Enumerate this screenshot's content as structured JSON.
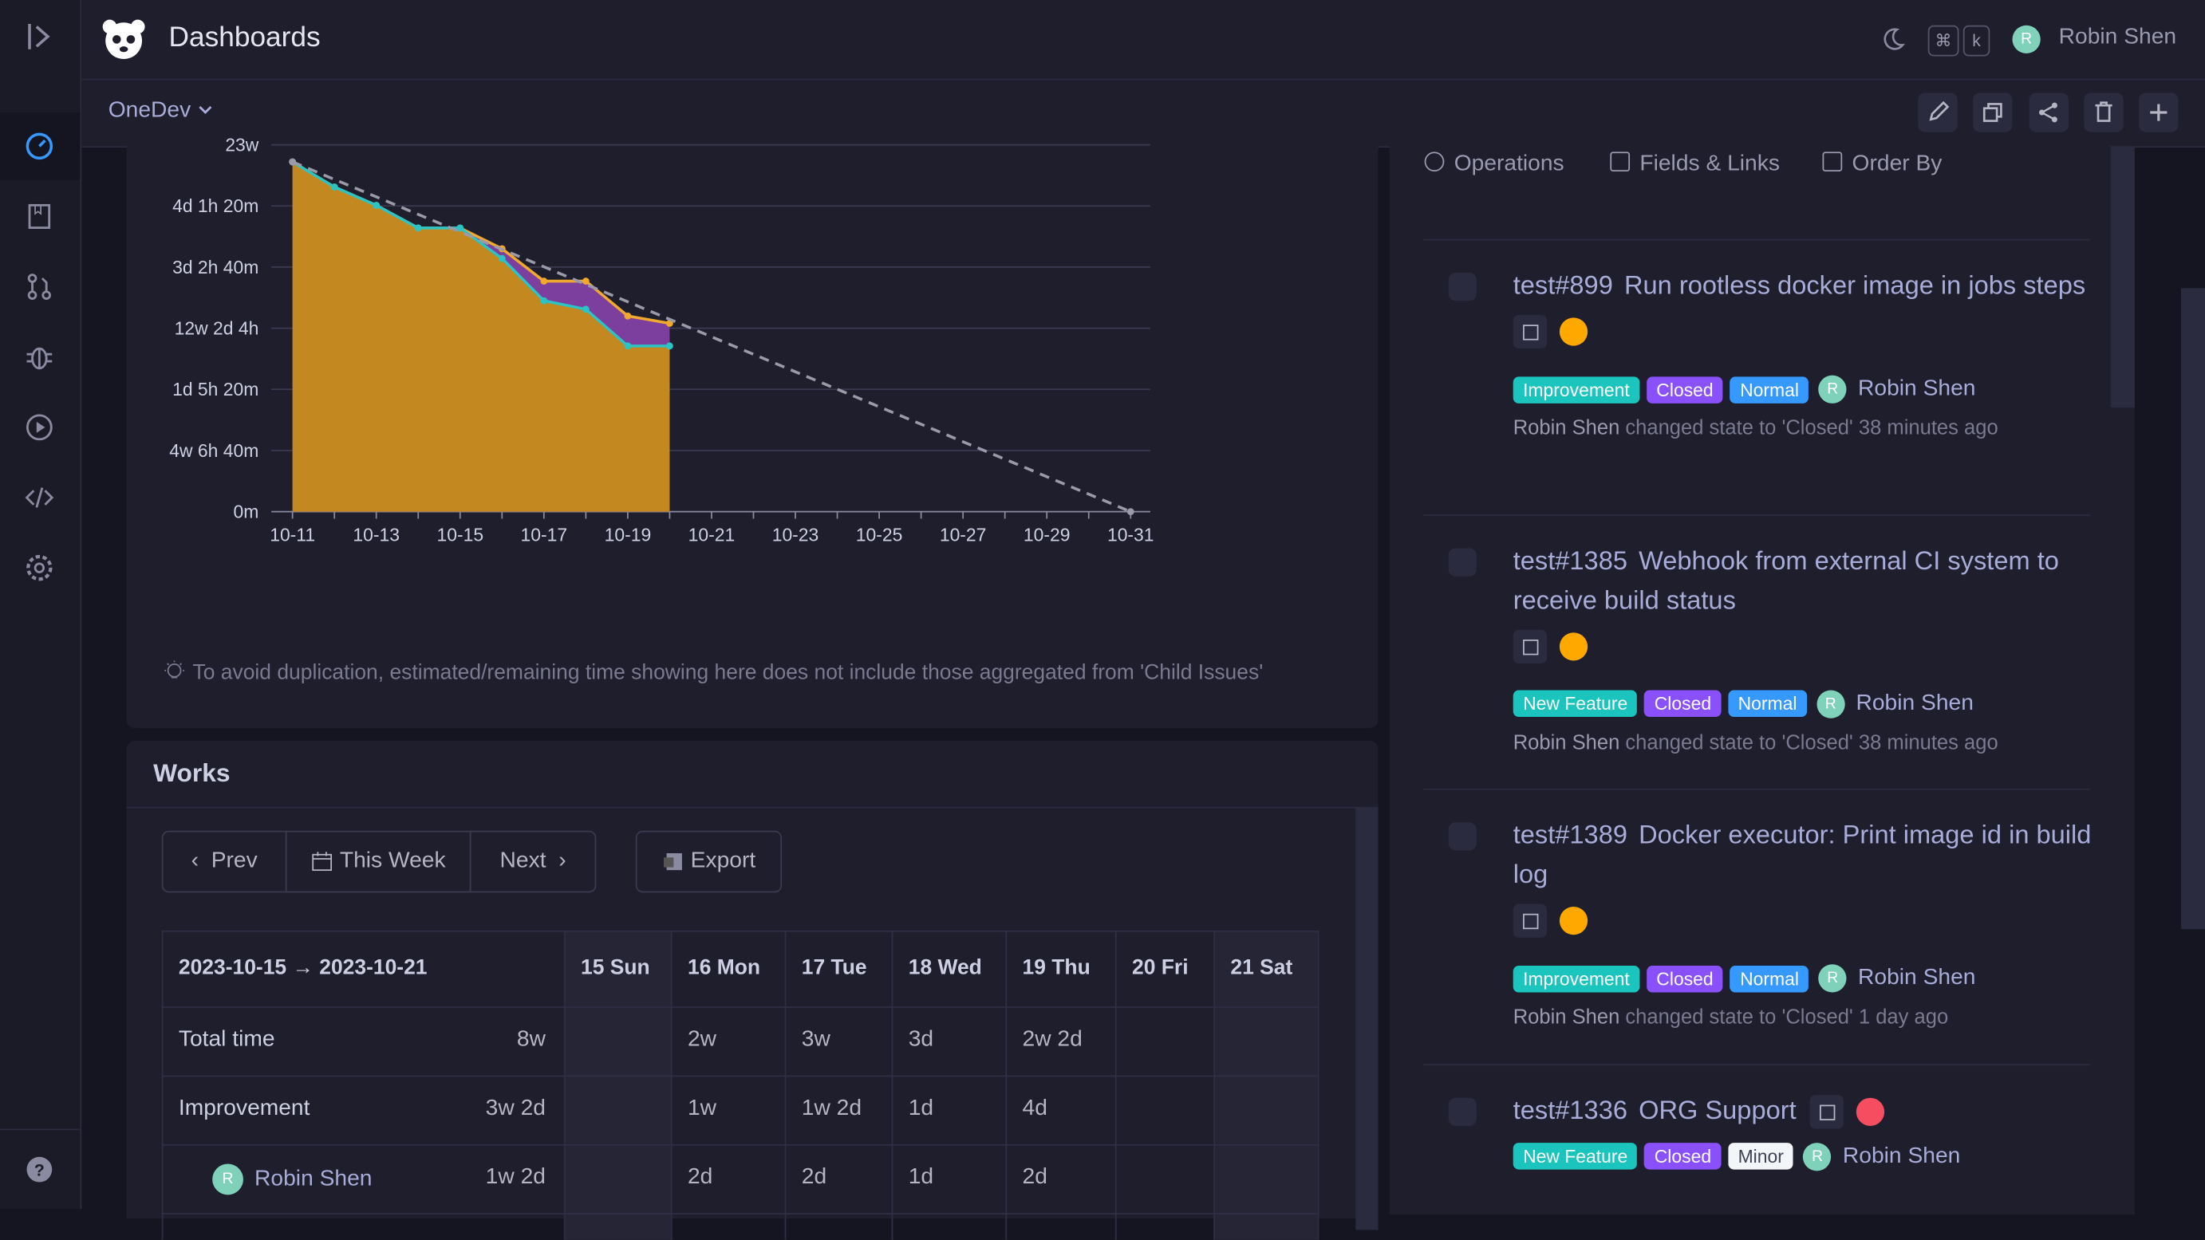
{
  "header": {
    "title": "Dashboards",
    "user": "Robin Shen",
    "avatar": "R",
    "shortcut": [
      "⌘",
      "k"
    ]
  },
  "toolbar": {
    "dashboard": "OneDev"
  },
  "burndown": {
    "type": "line",
    "categories": [
      "10-11",
      null,
      "10-13",
      null,
      "10-15",
      null,
      "10-17",
      null,
      "10-19",
      null,
      "10-21",
      null,
      "10-23",
      null,
      "10-25",
      null,
      "10-27",
      null,
      "10-29",
      null,
      "10-31"
    ],
    "ylim": [
      0,
      6
    ],
    "yticks": [
      {
        "value": 0,
        "label": "0m"
      },
      {
        "value": 1,
        "label": "4w 6h 40m"
      },
      {
        "value": 2,
        "label": "1d 5h 20m"
      },
      {
        "value": 3,
        "label": "12w 2d 4h"
      },
      {
        "value": 4,
        "label": "3d 2h 40m"
      },
      {
        "value": 5,
        "label": "4d 1h 20m"
      },
      {
        "value": 6,
        "label": "23w"
      }
    ],
    "grid": true,
    "series": [
      {
        "color": "#f0a92e",
        "fill": "#7d3f9e",
        "values": [
          5.72,
          5.31,
          5.01,
          4.64,
          4.64,
          4.3,
          3.77,
          3.77,
          3.2,
          3.08,
          null,
          null,
          null,
          null,
          null,
          null,
          null,
          null,
          null,
          null,
          null
        ]
      },
      {
        "color": "#2bc3c3",
        "fill": "#c3881f",
        "values": [
          5.72,
          5.31,
          5.01,
          4.64,
          4.64,
          4.14,
          3.45,
          3.31,
          2.71,
          2.71,
          null,
          null,
          null,
          null,
          null,
          null,
          null,
          null,
          null,
          null,
          null
        ]
      },
      {
        "color": "#9a9aa8",
        "dashed": true,
        "values": [
          5.72,
          null,
          null,
          null,
          null,
          null,
          null,
          null,
          null,
          null,
          null,
          null,
          null,
          null,
          null,
          null,
          null,
          null,
          null,
          null,
          0
        ]
      }
    ],
    "note": "To avoid duplication, estimated/remaining time showing here does not include those aggregated from 'Child Issues'"
  },
  "works": {
    "title": "Works",
    "buttons": {
      "prev": "Prev",
      "this_week": "This Week",
      "next": "Next",
      "export": "Export"
    },
    "table": {
      "header": [
        "2023-10-15 → 2023-10-21",
        "15 Sun",
        "16 Mon",
        "17 Tue",
        "18 Wed",
        "19 Thu",
        "20 Fri",
        "21 Sat"
      ],
      "rows": [
        [
          "Total time",
          "8w",
          null,
          "2w",
          "3w",
          "3d",
          "2w 2d",
          null,
          null
        ],
        [
          "Improvement",
          "3w 2d",
          null,
          "1w",
          "1w 2d",
          "1d",
          "4d",
          null,
          null
        ],
        [
          "Robin Shen",
          "1w 2d",
          null,
          "2d",
          "2d",
          "1d",
          "2d",
          null,
          null
        ]
      ]
    }
  },
  "issues": {
    "tabs": [
      "Operations",
      "Fields & Links",
      "Order By"
    ],
    "items": [
      {
        "number": "test#899",
        "title": "Run rootless docker image in jobs steps",
        "labels": [
          {
            "text": "Improvement",
            "color": "#1bc5bd"
          },
          {
            "text": "Closed",
            "color": "#8950fc"
          },
          {
            "text": "Normal",
            "color": "#3699ff"
          }
        ],
        "assignee": "Robin Shen",
        "activity_user": "Robin Shen",
        "activity": "changed state to 'Closed' 38 minutes ago"
      },
      {
        "number": "test#1385",
        "title": "Webhook from external CI system to receive build status",
        "labels": [
          {
            "text": "New Feature",
            "color": "#1bc5bd"
          },
          {
            "text": "Closed",
            "color": "#8950fc"
          },
          {
            "text": "Normal",
            "color": "#3699ff"
          }
        ],
        "assignee": "Robin Shen",
        "activity_user": "Robin Shen",
        "activity": "changed state to 'Closed' 38 minutes ago"
      },
      {
        "number": "test#1389",
        "title": "Docker executor: Print image id in build log",
        "labels": [
          {
            "text": "Improvement",
            "color": "#1bc5bd"
          },
          {
            "text": "Closed",
            "color": "#8950fc"
          },
          {
            "text": "Normal",
            "color": "#3699ff"
          }
        ],
        "assignee": "Robin Shen",
        "activity_user": "Robin Shen",
        "activity": "changed state to 'Closed' 1 day ago"
      },
      {
        "number": "test#1336",
        "title": "ORG Support",
        "labels": [
          {
            "text": "New Feature",
            "color": "#1bc5bd"
          },
          {
            "text": "Closed",
            "color": "#8950fc"
          },
          {
            "text": "Minor",
            "color": "#f3f6f9"
          }
        ],
        "assignee": "Robin Shen"
      }
    ]
  }
}
